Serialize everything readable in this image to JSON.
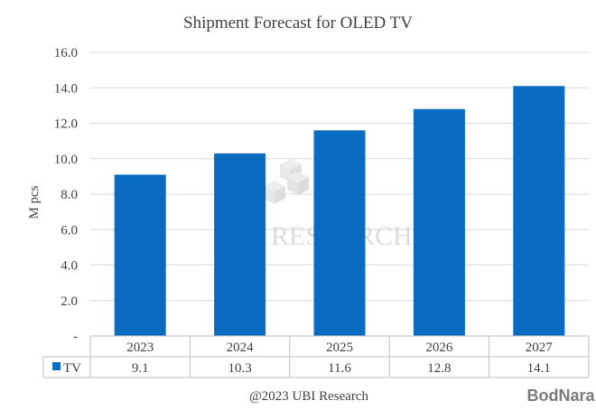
{
  "chart_data": {
    "type": "bar",
    "title": "Shipment Forecast for OLED TV",
    "ylabel": "M pcs",
    "xlabel": "",
    "categories": [
      "2023",
      "2024",
      "2025",
      "2026",
      "2027"
    ],
    "series": [
      {
        "name": "TV",
        "values": [
          9.1,
          10.3,
          11.6,
          12.8,
          14.1
        ],
        "color": "#0a6cc1"
      }
    ],
    "value_labels": [
      "9.1",
      "10.3",
      "11.6",
      "12.8",
      "14.1"
    ],
    "ylim": [
      0,
      16
    ],
    "yticks": [
      "-",
      "2.0",
      "4.0",
      "6.0",
      "8.0",
      "10.0",
      "12.0",
      "14.0",
      "16.0"
    ],
    "grid": true,
    "legend": "data-table",
    "gridline_color": "#d9d9d9"
  },
  "footer": {
    "credit": "@2023 UBI Research",
    "brand": "BodNara"
  },
  "watermark": {
    "logo_text": "UBi RESEARCH"
  }
}
